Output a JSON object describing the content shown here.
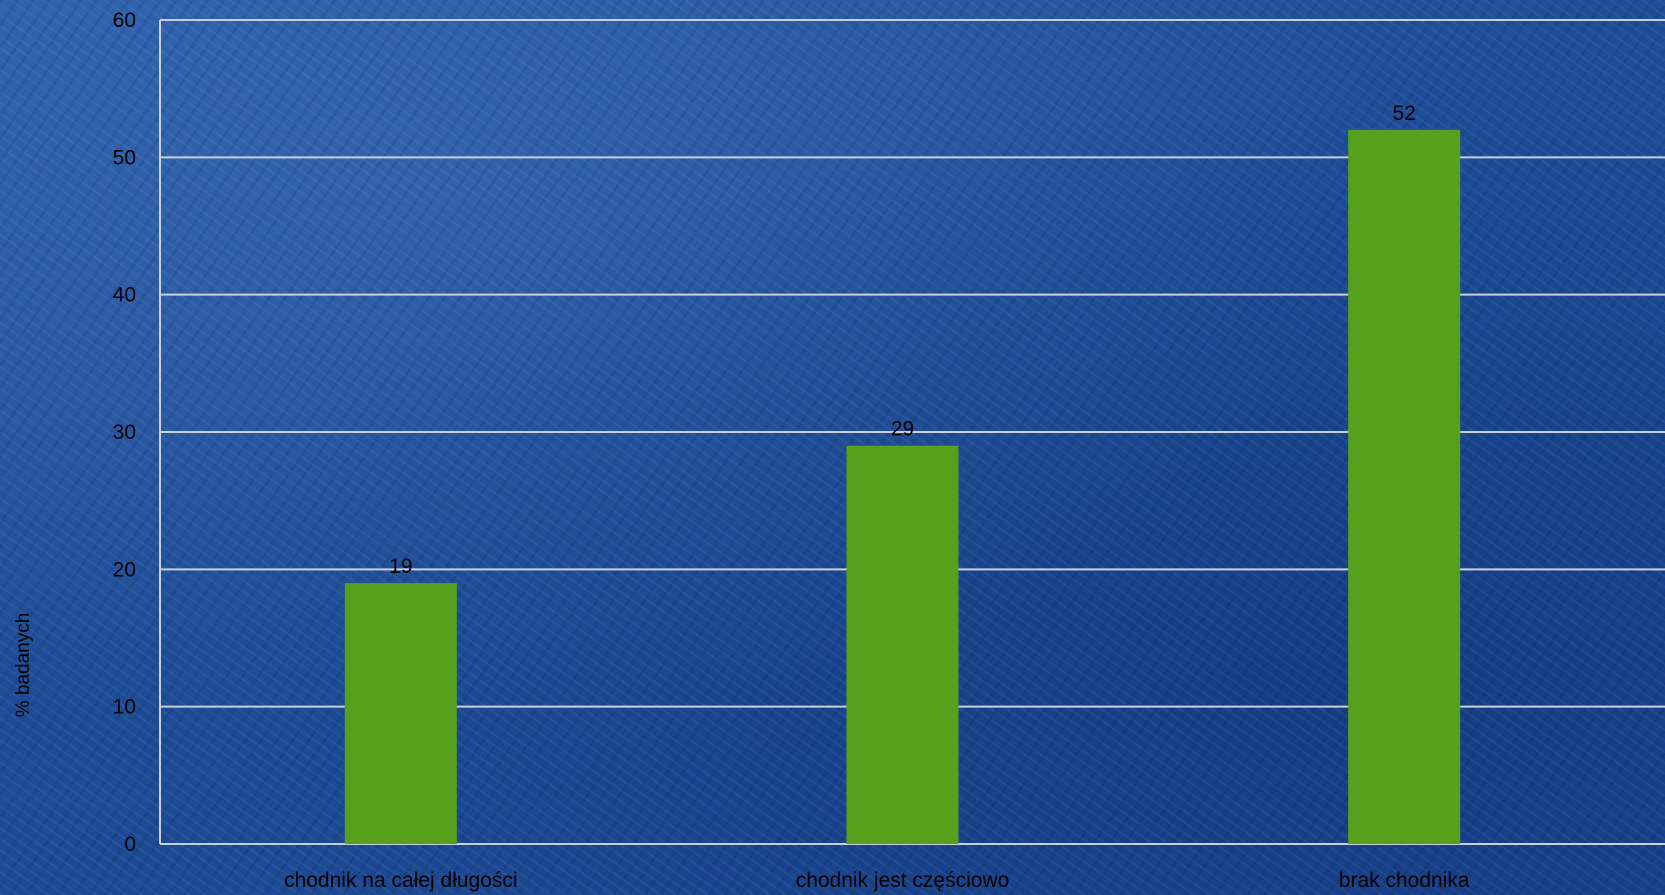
{
  "chart_data": {
    "type": "bar",
    "categories": [
      "chodnik na całej długości",
      "chodnik jest częściowo",
      "brak chodnika"
    ],
    "values": [
      19,
      29,
      52
    ],
    "value_labels": [
      "19",
      "29",
      "52"
    ],
    "ylabel": "% badanych",
    "xlabel": "",
    "ylim": [
      0,
      60
    ],
    "yticks": [
      "0",
      "10",
      "20",
      "30",
      "40",
      "50",
      "60"
    ],
    "grid": true,
    "legend": "none",
    "colors": {
      "bar": "#57a01e",
      "gridline": "#c8d0dc",
      "text": "#000000",
      "background": "#1f4f9a"
    }
  }
}
